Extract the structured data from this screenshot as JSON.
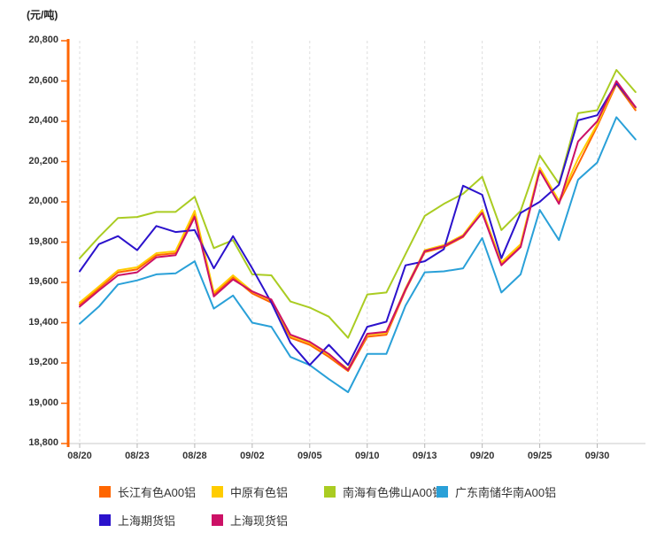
{
  "title": "(元/吨)",
  "chart_data": {
    "type": "line",
    "unit_label": "(元/吨)",
    "ylim": [
      18800,
      20800
    ],
    "y_tick_step": 200,
    "x_tick_labels": [
      "08/20",
      "08/23",
      "08/28",
      "09/02",
      "09/05",
      "09/10",
      "09/13",
      "09/20",
      "09/25",
      "09/30"
    ],
    "label_every": 3,
    "n_points": 30,
    "grid": "vertical-dashed",
    "legend_position": "bottom",
    "axis_colors": {
      "y_axis": "#FF6600",
      "x_axis": "#C8C8C8",
      "grid": "#DEDEDE",
      "tick_text": "#333333"
    },
    "series": [
      {
        "name": "长江有色A00铝",
        "color": "#FF6600",
        "values": [
          19490,
          19570,
          19650,
          19665,
          19735,
          19745,
          19940,
          19540,
          19625,
          19545,
          19500,
          19325,
          19290,
          19230,
          19160,
          19330,
          19340,
          19560,
          19750,
          19775,
          19825,
          19950,
          19690,
          19780,
          20160,
          19995,
          20185,
          20375,
          20585,
          20455
        ]
      },
      {
        "name": "中原有色铝",
        "color": "#FFCC00",
        "values": [
          19500,
          19580,
          19660,
          19675,
          19745,
          19755,
          19955,
          19550,
          19635,
          19555,
          19510,
          19335,
          19300,
          19240,
          19170,
          19340,
          19350,
          19570,
          19760,
          19785,
          19835,
          19960,
          19700,
          19790,
          20170,
          20005,
          20215,
          20385,
          20595,
          20465
        ]
      },
      {
        "name": "南海有色佛山A00铝",
        "color": "#AACC22",
        "values": [
          19720,
          19825,
          19920,
          19925,
          19950,
          19950,
          20025,
          19770,
          19810,
          19640,
          19635,
          19505,
          19475,
          19430,
          19325,
          19540,
          19550,
          19740,
          19930,
          19990,
          20040,
          20125,
          19860,
          19955,
          20230,
          20090,
          20440,
          20455,
          20655,
          20545
        ]
      },
      {
        "name": "广东南储华南A00铝",
        "color": "#29A0D8",
        "values": [
          19395,
          19480,
          19590,
          19610,
          19640,
          19645,
          19705,
          19470,
          19535,
          19400,
          19380,
          19230,
          19190,
          19120,
          19055,
          19245,
          19245,
          19485,
          19650,
          19655,
          19670,
          19820,
          19550,
          19640,
          19960,
          19810,
          20110,
          20195,
          20420,
          20310
        ]
      },
      {
        "name": "上海期货铝",
        "color": "#2B12CC",
        "values": [
          19655,
          19790,
          19830,
          19760,
          19880,
          19850,
          19860,
          19670,
          19830,
          19670,
          19500,
          19300,
          19190,
          19290,
          19190,
          19380,
          19405,
          19685,
          19705,
          19765,
          20080,
          20035,
          19720,
          19945,
          20000,
          20085,
          20405,
          20430,
          20590,
          20470
        ]
      },
      {
        "name": "上海现货铝",
        "color": "#CC1166",
        "values": [
          19480,
          19560,
          19635,
          19650,
          19725,
          19735,
          19925,
          19530,
          19615,
          19555,
          19515,
          19340,
          19305,
          19245,
          19165,
          19345,
          19355,
          19565,
          19755,
          19780,
          19830,
          19945,
          19685,
          19775,
          20155,
          19990,
          20300,
          20400,
          20600,
          20470
        ]
      }
    ],
    "legend_rows": [
      [
        0,
        1,
        2,
        3
      ],
      [
        4,
        5
      ]
    ]
  }
}
